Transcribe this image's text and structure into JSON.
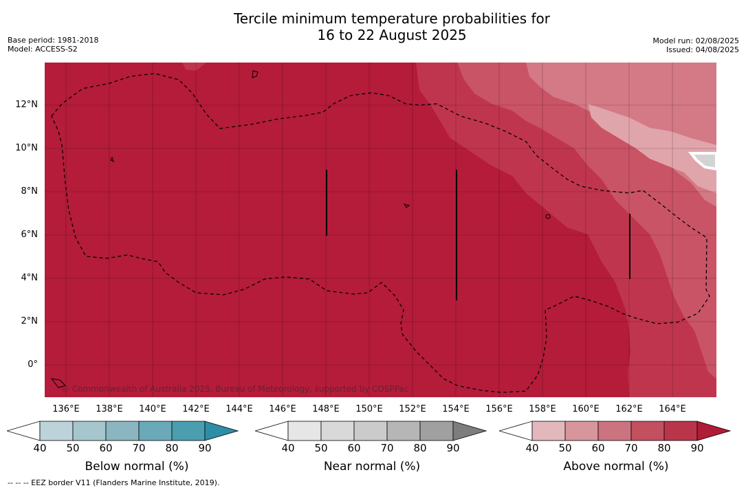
{
  "header": {
    "title_line1": "Tercile minimum temperature probabilities for",
    "title_line2": "16 to 22 August 2025",
    "base_period": "Base period: 1981-2018",
    "model": "Model: ACCESS-S2",
    "model_run": "Model run: 02/08/2025",
    "issued": "Issued: 04/08/2025"
  },
  "map": {
    "latitude_labels": [
      "12°N",
      "10°N",
      "8°N",
      "6°N",
      "4°N",
      "2°N",
      "0°"
    ],
    "longitude_labels": [
      "136°E",
      "138°E",
      "140°E",
      "142°E",
      "144°E",
      "146°E",
      "148°E",
      "150°E",
      "152°E",
      "154°E",
      "156°E",
      "158°E",
      "160°E",
      "162°E",
      "164°E"
    ],
    "copyright": "© Commonwealth of Australia 2025, Bureau of Meteorology, supported by COSPPac",
    "colors": {
      "above_90": "#b41c3a",
      "above_80": "#c0354e",
      "above_70": "#c95466",
      "above_60": "#d47a86",
      "above_50": "#e0a5ab",
      "near": "#d3d3d3"
    }
  },
  "legends": [
    {
      "title": "Below normal (%)",
      "ticks": [
        "40",
        "50",
        "60",
        "70",
        "80",
        "90"
      ],
      "colors": [
        "#ffffff",
        "#bcd3da",
        "#a6c6ce",
        "#8bb5c1",
        "#6aa9b8",
        "#4a9eb0",
        "#2d8ea6"
      ]
    },
    {
      "title": "Near normal (%)",
      "ticks": [
        "40",
        "50",
        "60",
        "70",
        "80",
        "90"
      ],
      "colors": [
        "#ffffff",
        "#e6e6e6",
        "#d9d9d9",
        "#cbcbcb",
        "#b6b6b6",
        "#a0a0a0",
        "#7d7d7d"
      ]
    },
    {
      "title": "Above normal (%)",
      "ticks": [
        "40",
        "50",
        "60",
        "70",
        "80",
        "90"
      ],
      "colors": [
        "#ffffff",
        "#e3b8bd",
        "#d7959c",
        "#cb737e",
        "#c2505f",
        "#b9364a",
        "#b01c36"
      ]
    }
  ],
  "footnote": "--  --  -- EEZ border V11 (Flanders Marine Institute, 2019)."
}
